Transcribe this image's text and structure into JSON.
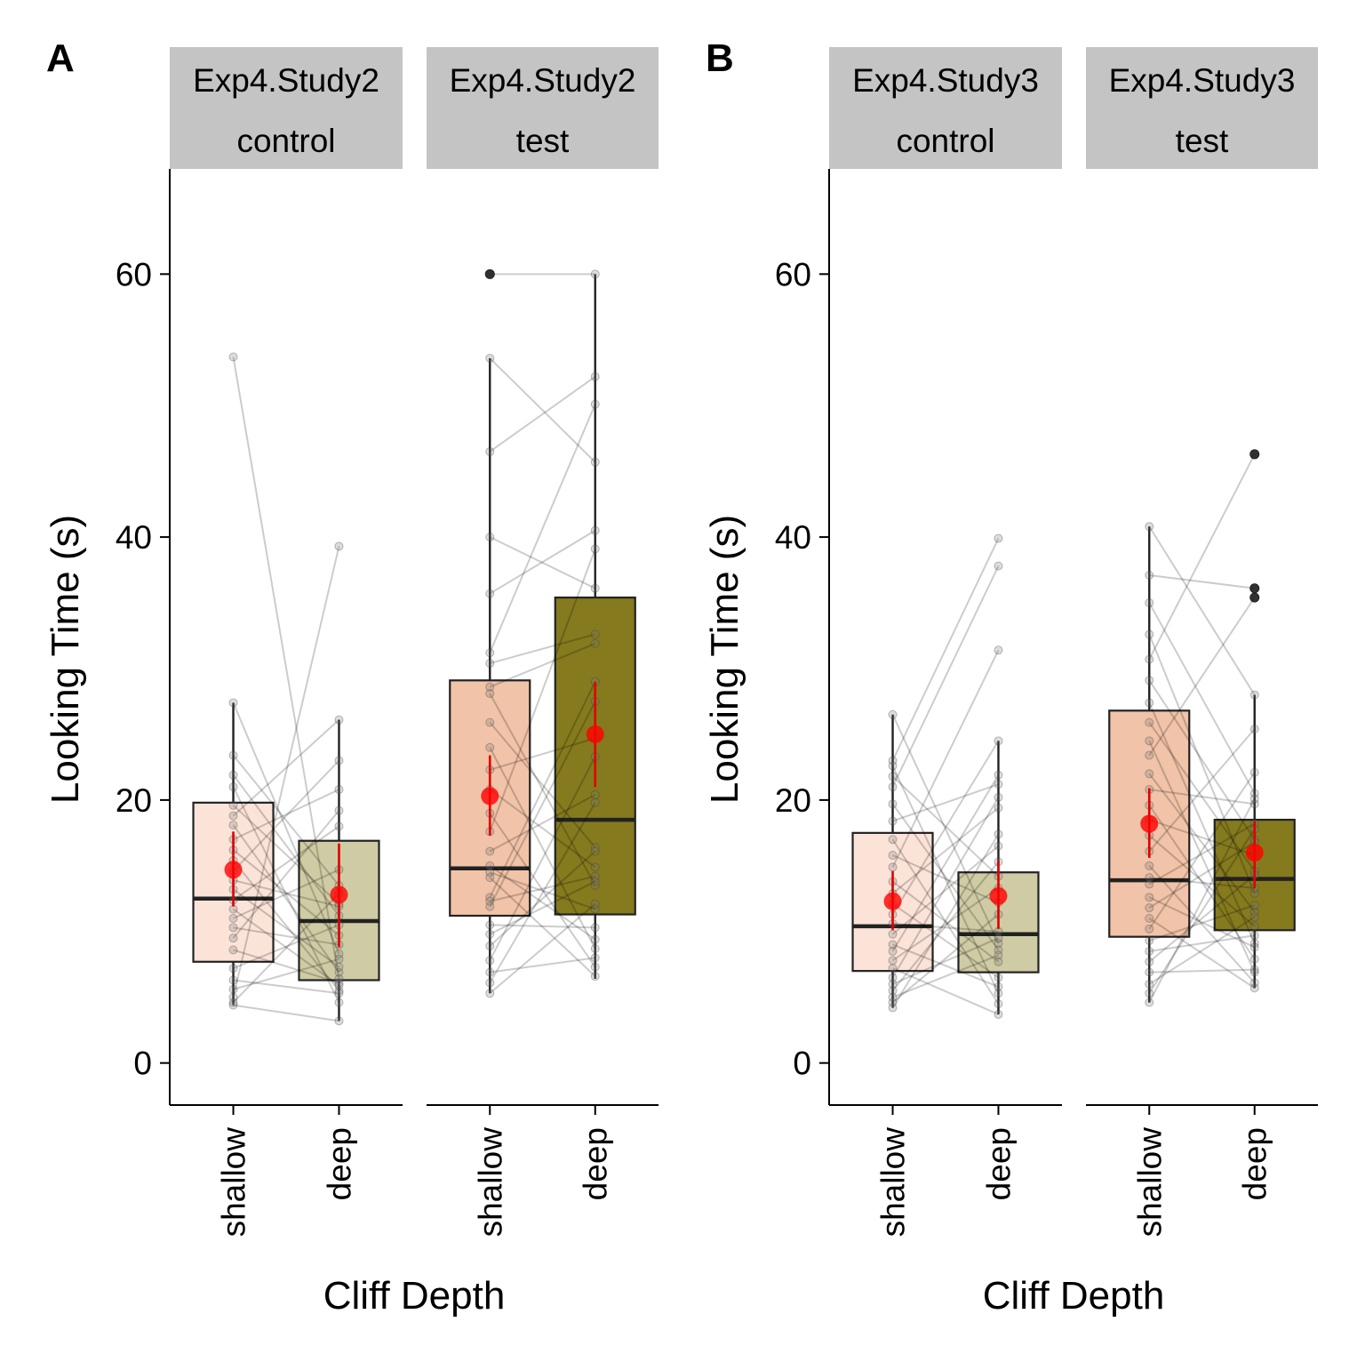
{
  "chart_data": [
    {
      "panel_label": "A",
      "type": "box",
      "ylabel": "Looking Time (s)",
      "xlabel": "Cliff Depth",
      "ylim": [
        -3.2,
        68
      ],
      "yticks": [
        0,
        20,
        40,
        60
      ],
      "categories": [
        "shallow",
        "deep"
      ],
      "facets": [
        {
          "strip": [
            "Exp4.Study2",
            "control"
          ],
          "boxes": [
            {
              "category": "shallow",
              "q1": 7.7,
              "median": 12.5,
              "q3": 19.8,
              "whisker_low": 4.4,
              "whisker_high": 27.4,
              "mean": 14.7,
              "ci": [
                11.9,
                17.6
              ],
              "outliers": [],
              "fill": "#fbe3d8"
            },
            {
              "category": "deep",
              "q1": 6.3,
              "median": 10.8,
              "q3": 16.9,
              "whisker_low": 3.2,
              "whisker_high": 26.1,
              "mean": 12.8,
              "ci": [
                8.8,
                16.7
              ],
              "outliers": [],
              "fill": "#cfcba4"
            }
          ],
          "pairs": [
            [
              53.7,
              6.4
            ],
            [
              27.4,
              8.3
            ],
            [
              23.4,
              13.5
            ],
            [
              21.9,
              11.2
            ],
            [
              21.0,
              4.6
            ],
            [
              19.6,
              12.1
            ],
            [
              18.8,
              26.1
            ],
            [
              18.1,
              6.9
            ],
            [
              17.0,
              20.8
            ],
            [
              16.2,
              9.7
            ],
            [
              15.4,
              5.5
            ],
            [
              14.6,
              23.0
            ],
            [
              13.9,
              11.9
            ],
            [
              13.2,
              7.3
            ],
            [
              12.4,
              18.0
            ],
            [
              11.7,
              5.9
            ],
            [
              11.0,
              14.7
            ],
            [
              10.3,
              9.0
            ],
            [
              9.5,
              19.2
            ],
            [
              8.6,
              6.1
            ],
            [
              7.2,
              10.5
            ],
            [
              6.3,
              5.3
            ],
            [
              5.6,
              7.9
            ],
            [
              5.0,
              39.3
            ],
            [
              4.6,
              12.9
            ],
            [
              4.4,
              3.2
            ]
          ]
        },
        {
          "strip": [
            "Exp4.Study2",
            "test"
          ],
          "boxes": [
            {
              "category": "shallow",
              "q1": 11.2,
              "median": 14.8,
              "q3": 29.1,
              "whisker_low": 5.3,
              "whisker_high": 53.6,
              "mean": 20.3,
              "ci": [
                17.3,
                23.4
              ],
              "outliers": [
                60.0
              ],
              "fill": "#f1c3a8"
            },
            {
              "category": "deep",
              "q1": 11.3,
              "median": 18.5,
              "q3": 35.4,
              "whisker_low": 6.4,
              "whisker_high": 60.0,
              "mean": 25.0,
              "ci": [
                21.0,
                29.0
              ],
              "outliers": [],
              "fill": "#857a1e"
            }
          ],
          "pairs": [
            [
              60.0,
              60.0
            ],
            [
              53.6,
              45.7
            ],
            [
              46.5,
              52.2
            ],
            [
              40.0,
              36.1
            ],
            [
              35.7,
              40.5
            ],
            [
              31.2,
              50.1
            ],
            [
              30.4,
              32.6
            ],
            [
              28.6,
              31.9
            ],
            [
              28.1,
              13.5
            ],
            [
              25.9,
              16.4
            ],
            [
              24.0,
              8.7
            ],
            [
              22.3,
              24.7
            ],
            [
              20.8,
              14.9
            ],
            [
              19.0,
              7.3
            ],
            [
              17.6,
              39.1
            ],
            [
              16.1,
              20.4
            ],
            [
              15.0,
              9.4
            ],
            [
              14.5,
              11.7
            ],
            [
              14.1,
              6.6
            ],
            [
              12.6,
              29.0
            ],
            [
              12.3,
              14.2
            ],
            [
              11.9,
              27.5
            ],
            [
              10.5,
              10.3
            ],
            [
              9.8,
              13.8
            ],
            [
              8.9,
              16.1
            ],
            [
              7.8,
              23.3
            ],
            [
              6.9,
              8.0
            ],
            [
              6.1,
              19.8
            ],
            [
              5.3,
              12.1
            ]
          ]
        }
      ]
    },
    {
      "panel_label": "B",
      "type": "box",
      "ylabel": "Looking Time (s)",
      "xlabel": "Cliff Depth",
      "ylim": [
        -3.2,
        68
      ],
      "yticks": [
        0,
        20,
        40,
        60
      ],
      "categories": [
        "shallow",
        "deep"
      ],
      "facets": [
        {
          "strip": [
            "Exp4.Study3",
            "control"
          ],
          "boxes": [
            {
              "category": "shallow",
              "q1": 7.0,
              "median": 10.4,
              "q3": 17.5,
              "whisker_low": 4.2,
              "whisker_high": 26.5,
              "mean": 12.3,
              "ci": [
                10.1,
                14.6
              ],
              "outliers": [],
              "fill": "#fbe3d8"
            },
            {
              "category": "deep",
              "q1": 6.9,
              "median": 9.8,
              "q3": 14.5,
              "whisker_low": 3.7,
              "whisker_high": 24.5,
              "mean": 12.7,
              "ci": [
                10.2,
                15.4
              ],
              "outliers": [],
              "fill": "#cfcba4"
            }
          ],
          "pairs": [
            [
              26.5,
              9.1
            ],
            [
              23.0,
              39.9
            ],
            [
              22.6,
              5.3
            ],
            [
              21.8,
              14.2
            ],
            [
              21.0,
              37.8
            ],
            [
              19.7,
              8.6
            ],
            [
              18.4,
              21.2
            ],
            [
              17.0,
              4.5
            ],
            [
              15.8,
              12.2
            ],
            [
              14.9,
              31.4
            ],
            [
              13.8,
              7.7
            ],
            [
              12.9,
              19.4
            ],
            [
              12.1,
              6.5
            ],
            [
              11.3,
              24.5
            ],
            [
              10.6,
              10.0
            ],
            [
              9.8,
              16.5
            ],
            [
              9.0,
              5.8
            ],
            [
              8.5,
              21.9
            ],
            [
              7.8,
              13.3
            ],
            [
              7.2,
              3.7
            ],
            [
              6.5,
              20.2
            ],
            [
              6.0,
              9.5
            ],
            [
              5.5,
              15.3
            ],
            [
              5.0,
              8.2
            ],
            [
              4.6,
              11.3
            ],
            [
              4.2,
              17.4
            ]
          ]
        },
        {
          "strip": [
            "Exp4.Study3",
            "test"
          ],
          "boxes": [
            {
              "category": "shallow",
              "q1": 9.6,
              "median": 13.9,
              "q3": 26.8,
              "whisker_low": 4.6,
              "whisker_high": 40.8,
              "mean": 18.2,
              "ci": [
                15.6,
                20.9
              ],
              "outliers": [],
              "fill": "#f1c3a8"
            },
            {
              "category": "deep",
              "q1": 10.1,
              "median": 14.0,
              "q3": 18.5,
              "whisker_low": 5.7,
              "whisker_high": 28.0,
              "mean": 16.0,
              "ci": [
                13.3,
                18.4
              ],
              "outliers": [
                46.3,
                36.1,
                35.4
              ],
              "fill": "#857a1e"
            }
          ],
          "pairs": [
            [
              40.8,
              28.0
            ],
            [
              37.1,
              36.1
            ],
            [
              35.0,
              20.5
            ],
            [
              32.6,
              12.9
            ],
            [
              30.7,
              46.3
            ],
            [
              29.1,
              17.0
            ],
            [
              27.4,
              9.1
            ],
            [
              25.9,
              14.6
            ],
            [
              24.5,
              6.9
            ],
            [
              23.4,
              35.4
            ],
            [
              22.0,
              11.5
            ],
            [
              20.8,
              19.7
            ],
            [
              19.6,
              7.9
            ],
            [
              18.5,
              15.8
            ],
            [
              17.3,
              10.4
            ],
            [
              16.1,
              25.4
            ],
            [
              15.0,
              6.1
            ],
            [
              14.1,
              13.3
            ],
            [
              13.6,
              18.2
            ],
            [
              12.6,
              8.8
            ],
            [
              11.8,
              16.8
            ],
            [
              11.0,
              5.7
            ],
            [
              10.2,
              22.1
            ],
            [
              9.3,
              12.0
            ],
            [
              8.5,
              9.7
            ],
            [
              7.7,
              14.3
            ],
            [
              6.9,
              7.1
            ],
            [
              6.0,
              11.1
            ],
            [
              5.3,
              17.8
            ],
            [
              4.6,
              20.1
            ]
          ]
        }
      ]
    }
  ]
}
